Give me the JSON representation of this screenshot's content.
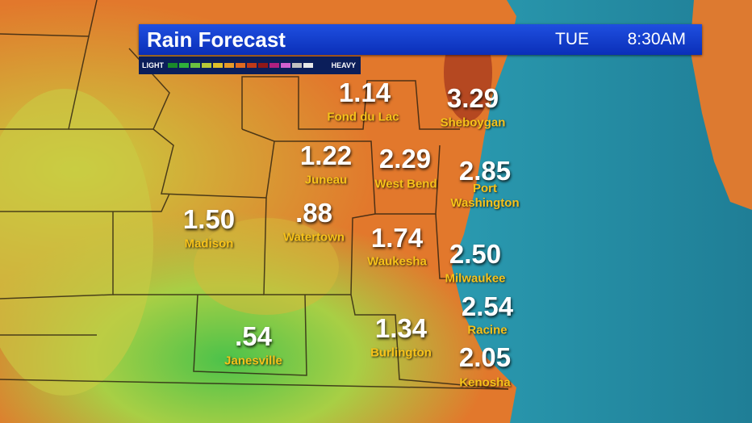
{
  "header": {
    "title": "Rain Forecast",
    "day": "TUE",
    "time": "8:30AM"
  },
  "legend": {
    "low": "LIGHT",
    "high": "HEAVY"
  },
  "cities": [
    {
      "name": "Fond du Lac",
      "value": "1.14"
    },
    {
      "name": "Sheboygan",
      "value": "3.29"
    },
    {
      "name": "Juneau",
      "value": "1.22"
    },
    {
      "name": "West Bend",
      "value": "2.29"
    },
    {
      "name": "Port Washington",
      "value": "2.85"
    },
    {
      "name": "Madison",
      "value": "1.50"
    },
    {
      "name": "Watertown",
      "value": ".88"
    },
    {
      "name": "Waukesha",
      "value": "1.74"
    },
    {
      "name": "Milwaukee",
      "value": "2.50"
    },
    {
      "name": "Racine",
      "value": "2.54"
    },
    {
      "name": "Janesville",
      "value": ".54"
    },
    {
      "name": "Burlington",
      "value": "1.34"
    },
    {
      "name": "Kenosha",
      "value": "2.05"
    }
  ]
}
